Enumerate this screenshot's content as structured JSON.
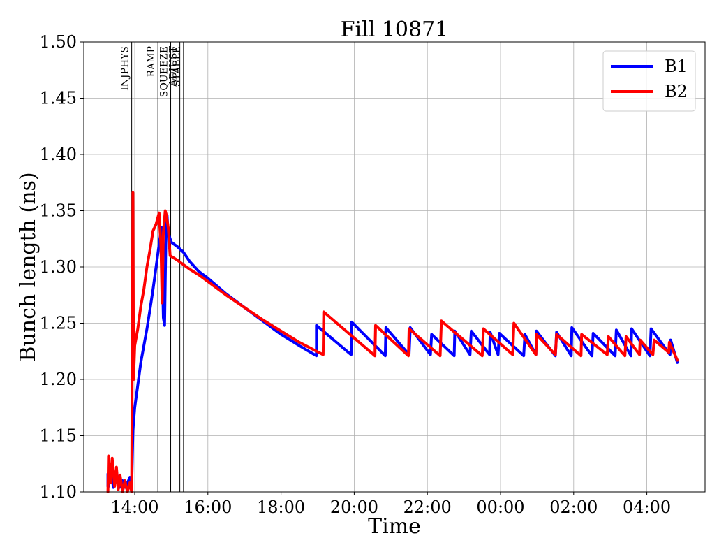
{
  "chart_data": {
    "type": "line",
    "title": "Fill 10871",
    "xlabel": "Time",
    "ylabel": "Bunch length (ns)",
    "ylim": [
      1.1,
      1.5
    ],
    "xlim": [
      "13:25",
      "05:20"
    ],
    "grid": true,
    "legend_position": "top-right",
    "x_ticks": [
      "14:00",
      "16:00",
      "18:00",
      "20:00",
      "22:00",
      "00:00",
      "02:00",
      "04:00"
    ],
    "y_ticks": [
      "1.10",
      "1.15",
      "1.20",
      "1.25",
      "1.30",
      "1.35",
      "1.40",
      "1.45",
      "1.50"
    ],
    "phases": [
      {
        "label": "INJPHYS",
        "time": "13:55"
      },
      {
        "label": "RAMP",
        "time": "14:38"
      },
      {
        "label": "SQUEEZE",
        "time": "14:59"
      },
      {
        "label": "ADJUST",
        "time": "15:14"
      },
      {
        "label": "STABLE",
        "time": "15:20"
      }
    ],
    "series": [
      {
        "name": "B1",
        "color": "#0000ff",
        "points": [
          [
            "13:16",
            1.105
          ],
          [
            "13:16",
            1.116
          ],
          [
            "13:17",
            1.105
          ],
          [
            "13:20",
            1.122
          ],
          [
            "13:25",
            1.104
          ],
          [
            "13:30",
            1.118
          ],
          [
            "13:35",
            1.104
          ],
          [
            "13:40",
            1.11
          ],
          [
            "13:45",
            1.104
          ],
          [
            "13:52",
            1.113
          ],
          [
            "13:55",
            1.104
          ],
          [
            "13:57",
            1.155
          ],
          [
            "14:00",
            1.175
          ],
          [
            "14:05",
            1.195
          ],
          [
            "14:10",
            1.215
          ],
          [
            "14:15",
            1.23
          ],
          [
            "14:20",
            1.245
          ],
          [
            "14:25",
            1.262
          ],
          [
            "14:30",
            1.28
          ],
          [
            "14:35",
            1.3
          ],
          [
            "14:40",
            1.32
          ],
          [
            "14:44",
            1.335
          ],
          [
            "14:47",
            1.255
          ],
          [
            "14:49",
            1.248
          ],
          [
            "14:51",
            1.32
          ],
          [
            "14:53",
            1.346
          ],
          [
            "14:55",
            1.33
          ],
          [
            "15:00",
            1.322
          ],
          [
            "15:10",
            1.318
          ],
          [
            "15:20",
            1.313
          ],
          [
            "15:30",
            1.305
          ],
          [
            "15:45",
            1.296
          ],
          [
            "16:00",
            1.29
          ],
          [
            "16:30",
            1.276
          ],
          [
            "17:00",
            1.264
          ],
          [
            "17:30",
            1.252
          ],
          [
            "18:00",
            1.24
          ],
          [
            "18:30",
            1.23
          ],
          [
            "18:58",
            1.221
          ],
          [
            "18:58",
            1.248
          ],
          [
            "19:55",
            1.222
          ],
          [
            "19:56",
            1.251
          ],
          [
            "20:51",
            1.221
          ],
          [
            "20:52",
            1.246
          ],
          [
            "21:30",
            1.222
          ],
          [
            "21:32",
            1.246
          ],
          [
            "22:05",
            1.222
          ],
          [
            "22:07",
            1.24
          ],
          [
            "22:44",
            1.221
          ],
          [
            "22:45",
            1.243
          ],
          [
            "23:10",
            1.222
          ],
          [
            "23:12",
            1.243
          ],
          [
            "23:42",
            1.222
          ],
          [
            "23:43",
            1.242
          ],
          [
            "23:56",
            1.222
          ],
          [
            "23:58",
            1.241
          ],
          [
            "00:38",
            1.221
          ],
          [
            "00:40",
            1.24
          ],
          [
            "00:58",
            1.222
          ],
          [
            "00:59",
            1.243
          ],
          [
            "01:30",
            1.221
          ],
          [
            "01:32",
            1.242
          ],
          [
            "01:56",
            1.221
          ],
          [
            "01:57",
            1.246
          ],
          [
            "02:30",
            1.221
          ],
          [
            "02:32",
            1.241
          ],
          [
            "03:08",
            1.221
          ],
          [
            "03:10",
            1.244
          ],
          [
            "03:34",
            1.221
          ],
          [
            "03:35",
            1.245
          ],
          [
            "04:05",
            1.221
          ],
          [
            "04:07",
            1.245
          ],
          [
            "04:38",
            1.222
          ],
          [
            "04:39",
            1.235
          ],
          [
            "04:50",
            1.215
          ]
        ]
      },
      {
        "name": "B2",
        "color": "#ff0000",
        "points": [
          [
            "13:16",
            1.1
          ],
          [
            "13:17",
            1.132
          ],
          [
            "13:20",
            1.108
          ],
          [
            "13:23",
            1.13
          ],
          [
            "13:27",
            1.105
          ],
          [
            "13:30",
            1.122
          ],
          [
            "13:33",
            1.102
          ],
          [
            "13:36",
            1.115
          ],
          [
            "13:40",
            1.1
          ],
          [
            "13:44",
            1.11
          ],
          [
            "13:48",
            1.1
          ],
          [
            "13:52",
            1.108
          ],
          [
            "13:55",
            1.1
          ],
          [
            "13:57",
            1.366
          ],
          [
            "13:58",
            1.2
          ],
          [
            "14:00",
            1.23
          ],
          [
            "14:05",
            1.245
          ],
          [
            "14:10",
            1.265
          ],
          [
            "14:15",
            1.28
          ],
          [
            "14:20",
            1.3
          ],
          [
            "14:25",
            1.315
          ],
          [
            "14:30",
            1.332
          ],
          [
            "14:35",
            1.338
          ],
          [
            "14:40",
            1.348
          ],
          [
            "14:43",
            1.318
          ],
          [
            "14:45",
            1.268
          ],
          [
            "14:47",
            1.33
          ],
          [
            "14:50",
            1.35
          ],
          [
            "14:52",
            1.346
          ],
          [
            "14:55",
            1.335
          ],
          [
            "14:58",
            1.31
          ],
          [
            "15:10",
            1.306
          ],
          [
            "15:20",
            1.302
          ],
          [
            "15:30",
            1.298
          ],
          [
            "15:45",
            1.293
          ],
          [
            "16:00",
            1.287
          ],
          [
            "16:30",
            1.275
          ],
          [
            "17:00",
            1.264
          ],
          [
            "17:30",
            1.253
          ],
          [
            "18:00",
            1.243
          ],
          [
            "18:30",
            1.233
          ],
          [
            "19:09",
            1.222
          ],
          [
            "19:10",
            1.26
          ],
          [
            "20:34",
            1.221
          ],
          [
            "20:35",
            1.248
          ],
          [
            "21:29",
            1.221
          ],
          [
            "21:30",
            1.245
          ],
          [
            "22:21",
            1.221
          ],
          [
            "22:23",
            1.252
          ],
          [
            "23:30",
            1.221
          ],
          [
            "23:32",
            1.245
          ],
          [
            "00:20",
            1.222
          ],
          [
            "00:22",
            1.25
          ],
          [
            "00:58",
            1.222
          ],
          [
            "00:59",
            1.24
          ],
          [
            "01:30",
            1.222
          ],
          [
            "01:32",
            1.24
          ],
          [
            "02:12",
            1.221
          ],
          [
            "02:13",
            1.24
          ],
          [
            "02:55",
            1.222
          ],
          [
            "02:57",
            1.238
          ],
          [
            "03:24",
            1.221
          ],
          [
            "03:26",
            1.238
          ],
          [
            "03:48",
            1.222
          ],
          [
            "03:49",
            1.235
          ],
          [
            "04:10",
            1.222
          ],
          [
            "04:12",
            1.235
          ],
          [
            "04:36",
            1.224
          ],
          [
            "04:37",
            1.233
          ],
          [
            "04:50",
            1.217
          ]
        ]
      }
    ]
  }
}
